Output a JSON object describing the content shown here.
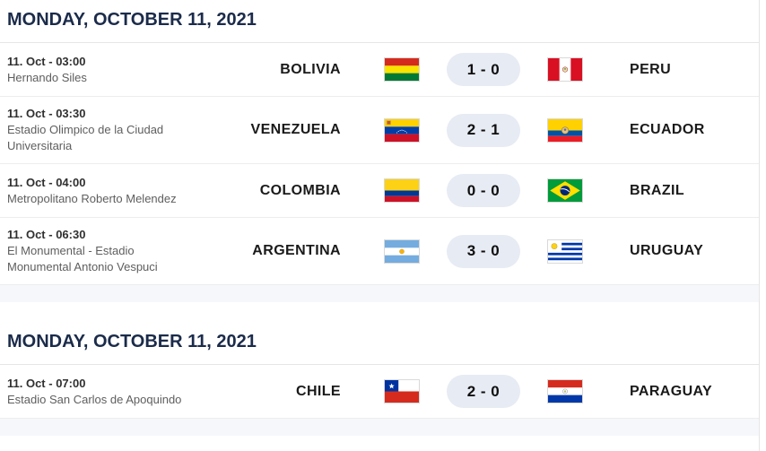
{
  "colors": {
    "header_text": "#1b2b4a",
    "score_pill_bg": "#e7ebf3",
    "row_border": "#ededed",
    "section_footer_bg": "#f6f7fb"
  },
  "sections": [
    {
      "header": "MONDAY, OCTOBER 11, 2021",
      "matches": [
        {
          "datetime": "11. Oct - 03:00",
          "venue": "Hernando Siles",
          "home": {
            "name": "BOLIVIA",
            "flag": "bolivia"
          },
          "score": "1 - 0",
          "away": {
            "name": "PERU",
            "flag": "peru"
          }
        },
        {
          "datetime": "11. Oct - 03:30",
          "venue": "Estadio Olimpico de la Ciudad Universitaria",
          "home": {
            "name": "VENEZUELA",
            "flag": "venezuela"
          },
          "score": "2 - 1",
          "away": {
            "name": "ECUADOR",
            "flag": "ecuador"
          }
        },
        {
          "datetime": "11. Oct - 04:00",
          "venue": "Metropolitano Roberto Melendez",
          "home": {
            "name": "COLOMBIA",
            "flag": "colombia"
          },
          "score": "0 - 0",
          "away": {
            "name": "BRAZIL",
            "flag": "brazil"
          }
        },
        {
          "datetime": "11. Oct - 06:30",
          "venue": "El Monumental - Estadio Monumental Antonio Vespuci",
          "home": {
            "name": "ARGENTINA",
            "flag": "argentina"
          },
          "score": "3 - 0",
          "away": {
            "name": "URUGUAY",
            "flag": "uruguay"
          }
        }
      ]
    },
    {
      "header": "MONDAY, OCTOBER 11, 2021",
      "matches": [
        {
          "datetime": "11. Oct - 07:00",
          "venue": "Estadio San Carlos de Apoquindo",
          "home": {
            "name": "CHILE",
            "flag": "chile"
          },
          "score": "2 - 0",
          "away": {
            "name": "PARAGUAY",
            "flag": "paraguay"
          }
        }
      ]
    }
  ]
}
